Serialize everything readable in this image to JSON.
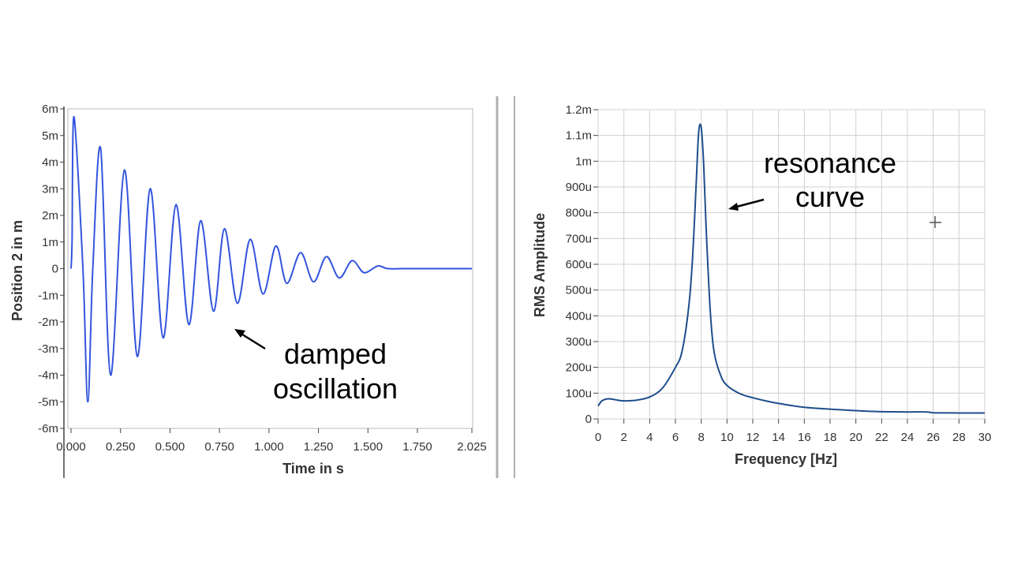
{
  "colors": {
    "left_line": "#3355dd",
    "right_line": "#1f4e8c",
    "grid": "#d0d0d0",
    "axis_text": "#333333",
    "annotation": "#000000"
  },
  "chart_data": [
    {
      "type": "line",
      "title": "",
      "xlabel": "Time in s",
      "ylabel": "Position 2 in m",
      "xlim": [
        0,
        2.025
      ],
      "ylim": [
        -0.006,
        0.006
      ],
      "grid": false,
      "x_ticks": [
        0,
        0.25,
        0.5,
        0.75,
        1.0,
        1.25,
        1.5,
        1.75,
        2.025
      ],
      "x_tick_labels": [
        "0.000",
        "0.250",
        "0.500",
        "0.750",
        "1.000",
        "1.250",
        "1.500",
        "1.750",
        "2.025"
      ],
      "y_ticks": [
        0.006,
        0.005,
        0.004,
        0.003,
        0.002,
        0.001,
        0,
        -0.001,
        -0.002,
        -0.003,
        -0.004,
        -0.005,
        -0.006
      ],
      "y_tick_labels": [
        "6m",
        "5m",
        "4m",
        "3m",
        "2m",
        "1m",
        "0",
        "-1m",
        "-2m",
        "-3m",
        "-4m",
        "-5m",
        "-6m"
      ],
      "series": [
        {
          "name": "Position 2",
          "x": [
            0,
            0.005,
            0.015,
            0.06,
            0.085,
            0.11,
            0.15,
            0.2,
            0.27,
            0.335,
            0.4,
            0.465,
            0.53,
            0.595,
            0.655,
            0.72,
            0.775,
            0.84,
            0.905,
            0.97,
            1.035,
            1.09,
            1.16,
            1.225,
            1.29,
            1.355,
            1.42,
            1.48,
            1.55,
            1.6,
            1.7,
            2.025
          ],
          "values": [
            0,
            0.001,
            0.0057,
            0.0,
            -0.005,
            0.0,
            0.0045,
            -0.004,
            0.0037,
            -0.0033,
            0.003,
            -0.0026,
            0.0024,
            -0.0021,
            0.0018,
            -0.0016,
            0.0015,
            -0.0013,
            0.0011,
            -0.00095,
            0.00085,
            -0.00055,
            0.0006,
            -0.0005,
            0.00045,
            -0.00035,
            0.0003,
            -0.00015,
            0.0001,
            0,
            0,
            0
          ]
        }
      ],
      "annotation": {
        "lines": [
          "damped",
          "oscillation"
        ]
      }
    },
    {
      "type": "line",
      "title": "",
      "xlabel": "Frequency [Hz]",
      "ylabel": "RMS Amplitude",
      "xlim": [
        0,
        30
      ],
      "ylim": [
        0,
        0.0012
      ],
      "grid": true,
      "x_ticks": [
        0,
        2,
        4,
        6,
        8,
        10,
        12,
        14,
        16,
        18,
        20,
        22,
        24,
        26,
        28,
        30
      ],
      "x_tick_labels": [
        "0",
        "2",
        "4",
        "6",
        "8",
        "10",
        "12",
        "14",
        "16",
        "18",
        "20",
        "22",
        "24",
        "26",
        "28",
        "30"
      ],
      "y_ticks": [
        0.0012,
        0.0011,
        0.001,
        0.0009,
        0.0008,
        0.0007,
        0.0006,
        0.0005,
        0.0004,
        0.0003,
        0.0002,
        0.0001,
        0
      ],
      "y_tick_labels": [
        "1.2m",
        "1.1m",
        "1m",
        "900u",
        "800u",
        "700u",
        "600u",
        "500u",
        "400u",
        "300u",
        "200u",
        "100u",
        "0"
      ],
      "series": [
        {
          "name": "RMS Amplitude",
          "x": [
            0,
            0.3,
            0.8,
            1.5,
            2,
            3,
            4,
            5,
            6,
            6.5,
            7,
            7.3,
            7.6,
            7.8,
            8,
            8.2,
            8.4,
            8.7,
            9,
            9.5,
            10,
            11,
            12,
            13,
            14,
            16,
            18,
            20,
            22,
            24,
            25.5,
            26,
            28,
            30
          ],
          "values": [
            5e-05,
            7e-05,
            7.8e-05,
            7.3e-05,
            7e-05,
            7.3e-05,
            8.5e-05,
            0.00012,
            0.0002,
            0.00026,
            0.00042,
            0.0006,
            0.0009,
            0.00111,
            0.00113,
            0.00098,
            0.00072,
            0.00042,
            0.00026,
            0.00017,
            0.00013,
            9.8e-05,
            8.2e-05,
            7e-05,
            6e-05,
            4.5e-05,
            3.8e-05,
            3.2e-05,
            2.8e-05,
            2.7e-05,
            2.7e-05,
            2.4e-05,
            2.3e-05,
            2.3e-05
          ]
        }
      ],
      "annotation": {
        "lines": [
          "resonance",
          "curve"
        ]
      }
    }
  ]
}
